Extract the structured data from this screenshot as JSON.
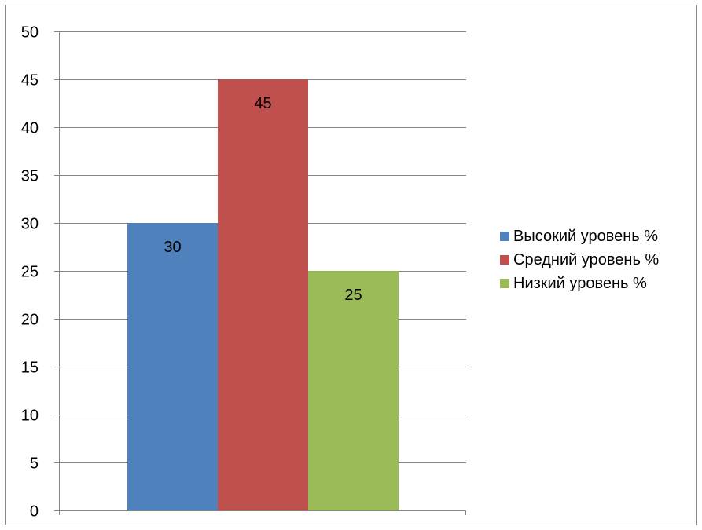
{
  "chart_data": {
    "type": "bar",
    "categories": [
      ""
    ],
    "series": [
      {
        "name": "Высокий уровень %",
        "values": [
          30
        ],
        "color": "#4F81BD"
      },
      {
        "name": "Средний уровень %",
        "values": [
          45
        ],
        "color": "#C0504D"
      },
      {
        "name": "Низкий уровень %",
        "values": [
          25
        ],
        "color": "#9BBB59"
      }
    ],
    "data_labels": [
      "30",
      "45",
      "25"
    ],
    "title": "",
    "xlabel": "",
    "ylabel": "",
    "ylim": [
      0,
      50
    ],
    "yticks": [
      "0",
      "5",
      "10",
      "15",
      "20",
      "25",
      "30",
      "35",
      "40",
      "45",
      "50"
    ],
    "grid": true,
    "legend_position": "right"
  }
}
